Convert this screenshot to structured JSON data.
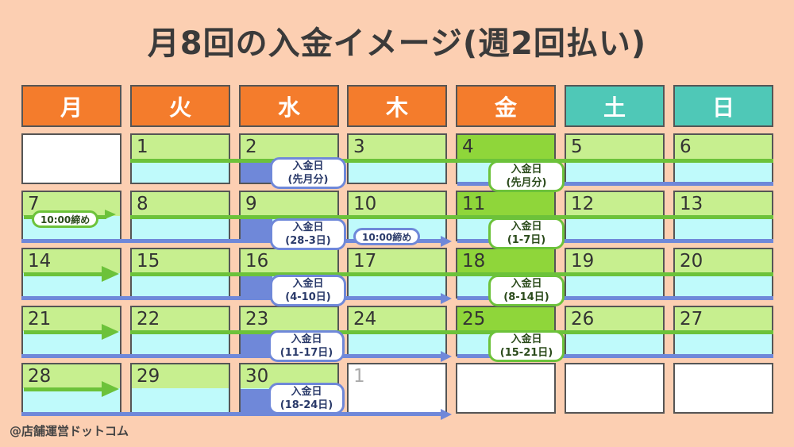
{
  "title": "月8回の入金イメージ(週2回払い)",
  "weekdays": [
    "月",
    "火",
    "水",
    "木",
    "金",
    "土",
    "日"
  ],
  "weeks": [
    [
      "",
      "1",
      "2",
      "3",
      "4",
      "5",
      "6"
    ],
    [
      "7",
      "8",
      "9",
      "10",
      "11",
      "12",
      "13"
    ],
    [
      "14",
      "15",
      "16",
      "17",
      "18",
      "19",
      "20"
    ],
    [
      "21",
      "22",
      "23",
      "24",
      "25",
      "26",
      "27"
    ],
    [
      "28",
      "29",
      "30",
      "1",
      "",
      "",
      ""
    ]
  ],
  "payment_label": "入金日",
  "wed_payments": [
    "(先月分)",
    "(28-3日)",
    "(4-10日)",
    "(11-17日)",
    "(18-24日)"
  ],
  "fri_payments": [
    "(先月分)",
    "(1-7日)",
    "(8-14日)",
    "(15-21日)"
  ],
  "cutoff_green": "10:00締め",
  "cutoff_blue": "10:00締め",
  "footer": "@店舗運営ドットコム",
  "colors": {
    "weekday_header": "#f47c2c",
    "weekend_header": "#4fc8b7",
    "green": "#6cc23a",
    "blue": "#6f88d9",
    "background": "#fccfb2"
  }
}
